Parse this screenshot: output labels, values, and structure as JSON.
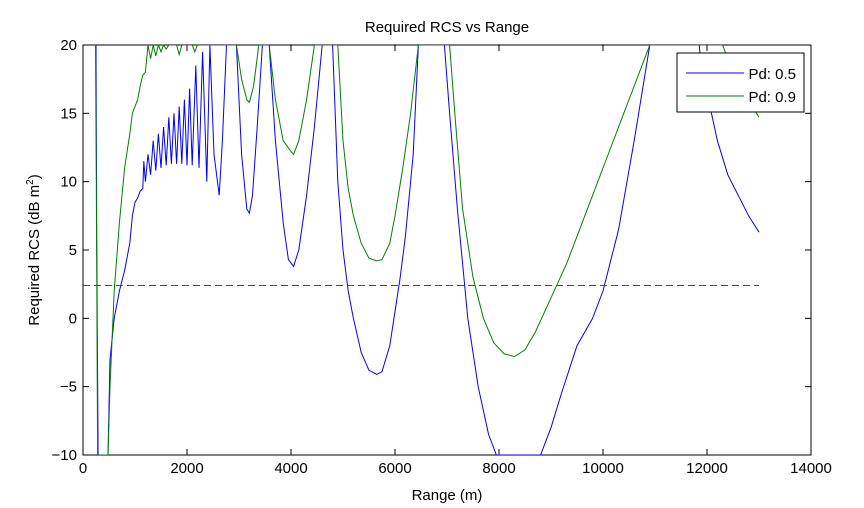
{
  "chart_data": {
    "type": "line",
    "title": "Required RCS vs Range",
    "xlabel": "Range (m)",
    "ylabel": "Required RCS (dB m",
    "ylabel_superscript": "2",
    "ylabel_suffix": ")",
    "xlim": [
      0,
      14000
    ],
    "ylim": [
      -10,
      20
    ],
    "x_ticks": [
      0,
      2000,
      4000,
      6000,
      8000,
      10000,
      12000,
      14000
    ],
    "y_ticks": [
      -10,
      -5,
      0,
      5,
      10,
      15,
      20
    ],
    "x_tick_labels": [
      "0",
      "2000",
      "4000",
      "6000",
      "8000",
      "10000",
      "12000",
      "14000"
    ],
    "y_tick_labels": [
      "−10",
      "−5",
      "0",
      "5",
      "10",
      "15",
      "20"
    ],
    "grid": false,
    "legend_position": "top-right",
    "series": [
      {
        "name": "Pd: 0.5",
        "color": "#0000ff",
        "points": [
          [
            250,
            20
          ],
          [
            265,
            5
          ],
          [
            290,
            -10
          ],
          [
            480,
            -10
          ],
          [
            520,
            -3
          ],
          [
            600,
            0
          ],
          [
            700,
            2
          ],
          [
            800,
            3.5
          ],
          [
            900,
            5.5
          ],
          [
            950,
            7.5
          ],
          [
            1000,
            8.5
          ],
          [
            1050,
            8.8
          ],
          [
            1100,
            9.3
          ],
          [
            1150,
            9.5
          ],
          [
            1170,
            11.5
          ],
          [
            1200,
            10
          ],
          [
            1250,
            12
          ],
          [
            1300,
            10.5
          ],
          [
            1350,
            13
          ],
          [
            1400,
            10.8
          ],
          [
            1450,
            13.5
          ],
          [
            1500,
            11
          ],
          [
            1550,
            14
          ],
          [
            1600,
            11.2
          ],
          [
            1650,
            14.7
          ],
          [
            1700,
            11.3
          ],
          [
            1750,
            15
          ],
          [
            1800,
            11.3
          ],
          [
            1850,
            15.5
          ],
          [
            1900,
            11.3
          ],
          [
            1950,
            16
          ],
          [
            2000,
            11.2
          ],
          [
            2050,
            16.8
          ],
          [
            2100,
            11.2
          ],
          [
            2170,
            18.5
          ],
          [
            2230,
            11
          ],
          [
            2300,
            19.5
          ],
          [
            2380,
            10
          ],
          [
            2440,
            20
          ],
          [
            2520,
            12
          ],
          [
            2620,
            9
          ],
          [
            2680,
            13
          ],
          [
            2760,
            20
          ],
          [
            2950,
            20
          ],
          [
            3050,
            12
          ],
          [
            3150,
            8
          ],
          [
            3200,
            7.7
          ],
          [
            3260,
            9
          ],
          [
            3350,
            14
          ],
          [
            3450,
            20
          ],
          [
            3580,
            20
          ],
          [
            3700,
            13
          ],
          [
            3850,
            7
          ],
          [
            3950,
            4.3
          ],
          [
            4050,
            3.8
          ],
          [
            4150,
            5
          ],
          [
            4300,
            9
          ],
          [
            4450,
            14
          ],
          [
            4600,
            20
          ],
          [
            4800,
            20
          ],
          [
            4900,
            10
          ],
          [
            5000,
            5
          ],
          [
            5100,
            2
          ],
          [
            5200,
            0
          ],
          [
            5350,
            -2.5
          ],
          [
            5500,
            -3.8
          ],
          [
            5650,
            -4.1
          ],
          [
            5750,
            -3.9
          ],
          [
            5900,
            -2
          ],
          [
            6000,
            0.5
          ],
          [
            6100,
            3
          ],
          [
            6200,
            6
          ],
          [
            6350,
            12
          ],
          [
            6450,
            20
          ],
          [
            6950,
            20
          ],
          [
            7050,
            15
          ],
          [
            7200,
            8
          ],
          [
            7400,
            0
          ],
          [
            7600,
            -5
          ],
          [
            7800,
            -8.5
          ],
          [
            7950,
            -10
          ],
          [
            8800,
            -10
          ],
          [
            9000,
            -8
          ],
          [
            9200,
            -5.5
          ],
          [
            9500,
            -2
          ],
          [
            9800,
            0
          ],
          [
            10000,
            2
          ],
          [
            10300,
            6.5
          ],
          [
            10600,
            13
          ],
          [
            10900,
            20
          ],
          [
            11850,
            20
          ],
          [
            11900,
            18
          ],
          [
            12000,
            16.5
          ],
          [
            12200,
            13
          ],
          [
            12400,
            10.5
          ],
          [
            12600,
            9
          ],
          [
            12800,
            7.5
          ],
          [
            13000,
            6.3
          ]
        ]
      },
      {
        "name": "Pd: 0.9",
        "color": "#008000",
        "points": [
          [
            240,
            20
          ],
          [
            255,
            10
          ],
          [
            280,
            -10
          ],
          [
            480,
            -10
          ],
          [
            520,
            -5
          ],
          [
            600,
            2
          ],
          [
            700,
            7
          ],
          [
            800,
            11
          ],
          [
            900,
            13.5
          ],
          [
            950,
            15
          ],
          [
            1000,
            15.5
          ],
          [
            1050,
            16
          ],
          [
            1100,
            17
          ],
          [
            1150,
            17.8
          ],
          [
            1200,
            18
          ],
          [
            1250,
            20
          ],
          [
            1300,
            19
          ],
          [
            1350,
            20
          ],
          [
            1400,
            19.2
          ],
          [
            1450,
            20
          ],
          [
            1500,
            19.5
          ],
          [
            1550,
            20
          ],
          [
            1600,
            19.7
          ],
          [
            1650,
            20
          ],
          [
            1800,
            20
          ],
          [
            1850,
            19.3
          ],
          [
            1900,
            20
          ],
          [
            2100,
            20
          ],
          [
            2150,
            19.5
          ],
          [
            2200,
            20
          ],
          [
            2950,
            20
          ],
          [
            3050,
            17.5
          ],
          [
            3150,
            16
          ],
          [
            3200,
            15.8
          ],
          [
            3280,
            17
          ],
          [
            3380,
            20
          ],
          [
            3580,
            20
          ],
          [
            3700,
            16
          ],
          [
            3850,
            13
          ],
          [
            4000,
            12.2
          ],
          [
            4050,
            12
          ],
          [
            4150,
            13
          ],
          [
            4300,
            16
          ],
          [
            4450,
            20
          ],
          [
            4900,
            20
          ],
          [
            5000,
            13
          ],
          [
            5100,
            9.5
          ],
          [
            5200,
            7.5
          ],
          [
            5350,
            5.5
          ],
          [
            5500,
            4.4
          ],
          [
            5650,
            4.2
          ],
          [
            5750,
            4.3
          ],
          [
            5900,
            5.5
          ],
          [
            6000,
            7.5
          ],
          [
            6150,
            11
          ],
          [
            6300,
            15
          ],
          [
            6450,
            20
          ],
          [
            7050,
            20
          ],
          [
            7150,
            15
          ],
          [
            7300,
            8
          ],
          [
            7500,
            3
          ],
          [
            7700,
            0
          ],
          [
            7900,
            -1.8
          ],
          [
            8100,
            -2.6
          ],
          [
            8300,
            -2.8
          ],
          [
            8500,
            -2.3
          ],
          [
            8700,
            -1
          ],
          [
            9000,
            1.5
          ],
          [
            9300,
            4
          ],
          [
            9600,
            7
          ],
          [
            10000,
            11
          ],
          [
            10400,
            15
          ],
          [
            10800,
            19
          ],
          [
            10900,
            20
          ],
          [
            12300,
            20
          ],
          [
            12400,
            19
          ],
          [
            12600,
            17.5
          ],
          [
            12800,
            16
          ],
          [
            13000,
            14.7
          ]
        ]
      },
      {
        "name": "",
        "color": "#ff0000",
        "dashed": true,
        "points": [
          [
            0,
            2.4
          ],
          [
            13000,
            2.4
          ]
        ]
      }
    ]
  }
}
